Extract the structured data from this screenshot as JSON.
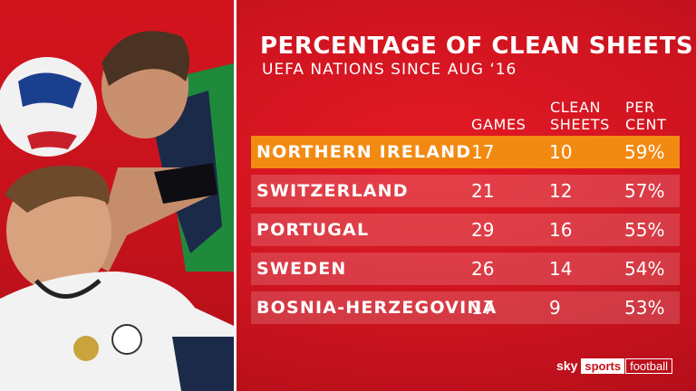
{
  "header": {
    "title": "PERCENTAGE OF CLEAN SHEETS",
    "subtitle": "UEFA NATIONS SINCE AUG ‘16"
  },
  "columns": {
    "games": "GAMES",
    "clean_line1": "CLEAN",
    "clean_line2": "SHEETS",
    "pct_line1": "PER",
    "pct_line2": "CENT"
  },
  "rows": [
    {
      "country": "NORTHERN IRELAND",
      "games": "17",
      "clean_sheets": "10",
      "per_cent": "59%",
      "highlight": true
    },
    {
      "country": "SWITZERLAND",
      "games": "21",
      "clean_sheets": "12",
      "per_cent": "57%"
    },
    {
      "country": "PORTUGAL",
      "games": "29",
      "clean_sheets": "16",
      "per_cent": "55%"
    },
    {
      "country": "SWEDEN",
      "games": "26",
      "clean_sheets": "14",
      "per_cent": "54%"
    },
    {
      "country": "BOSNIA-HERZEGOVINA",
      "games": "17",
      "clean_sheets": "9",
      "per_cent": "53%"
    }
  ],
  "branding": {
    "sky": "sky",
    "sports": "sports",
    "football": "football"
  },
  "colors": {
    "background": "#c8101c",
    "highlight_row": "#f28a12",
    "row": "#d8555c"
  }
}
